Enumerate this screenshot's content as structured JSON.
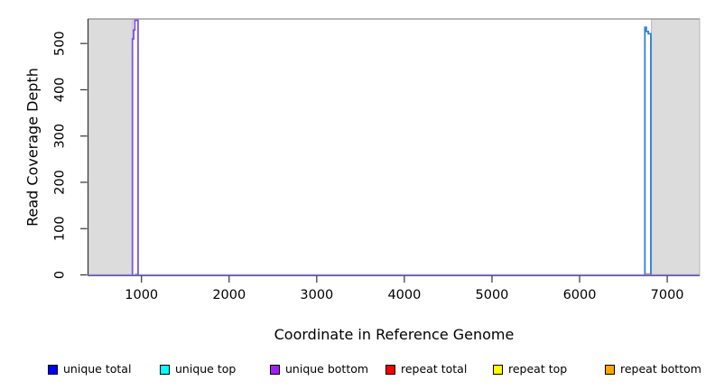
{
  "chart_data": {
    "type": "line",
    "title": "",
    "xlabel": "Coordinate in Reference Genome",
    "ylabel": "Read Coverage Depth",
    "xlim": [
      390,
      7370
    ],
    "ylim": [
      0,
      553
    ],
    "x_ticks": [
      1000,
      2000,
      3000,
      4000,
      5000,
      6000,
      7000
    ],
    "y_ticks": [
      0,
      100,
      200,
      300,
      400,
      500
    ],
    "grid": false,
    "legend_position": "bottom",
    "masked_regions": [
      {
        "start": 390,
        "end": 900
      },
      {
        "start": 6820,
        "end": 7370
      }
    ],
    "masked_region_fill": "#dcdcdc",
    "masked_region_border": "#b8b8b8",
    "plot_top_border_color": "#8c8c8c",
    "axis_color": "#303030",
    "peaks": [
      {
        "x_start": 897,
        "x_end": 961,
        "depth": 550,
        "which": "left spike near coordinate 900-960"
      },
      {
        "x_start": 6745,
        "x_end": 6813,
        "depth": 535,
        "which": "right spike near coordinate 6750-6810"
      }
    ],
    "series": [
      {
        "label": "unique total",
        "color": "#0000ff"
      },
      {
        "label": "unique top",
        "color": "#00ffff"
      },
      {
        "label": "unique bottom",
        "color": "#a020f0"
      },
      {
        "label": "repeat total",
        "color": "#ff0000"
      },
      {
        "label": "repeat top",
        "color": "#ffff00"
      },
      {
        "label": "repeat bottom",
        "color": "#ffa500"
      }
    ],
    "plotted_lines": [
      {
        "id": "baseline",
        "desc": "all series at zero depth across genome",
        "color": "#8f7bea",
        "width": 1.5,
        "points": [
          [
            390,
            0
          ],
          [
            7370,
            0
          ]
        ]
      },
      {
        "id": "repeat-total-bump",
        "desc": "tiny repeat coverage at right spike base",
        "color": "#ff6a5a",
        "width": 1.4,
        "points": [
          [
            6747,
            2
          ],
          [
            6812,
            2
          ]
        ]
      },
      {
        "id": "repeat-top-bump",
        "desc": "tiny repeat coverage at left spike base",
        "color": "#5dbd5d",
        "width": 1.4,
        "points": [
          [
            928,
            2
          ],
          [
            958,
            2
          ]
        ]
      },
      {
        "id": "left-spike",
        "desc": "unique total + unique bottom overlap, peak ~550",
        "color": "#7b52ee",
        "width": 1.8,
        "points": [
          [
            897,
            0
          ],
          [
            897,
            510
          ],
          [
            911,
            510
          ],
          [
            911,
            529
          ],
          [
            924,
            529
          ],
          [
            924,
            550
          ],
          [
            961,
            550
          ],
          [
            961,
            0
          ]
        ]
      },
      {
        "id": "right-spike",
        "desc": "unique total + unique top overlap, peak ~535",
        "color": "#2f7fe0",
        "width": 1.8,
        "points": [
          [
            6745,
            0
          ],
          [
            6745,
            535
          ],
          [
            6761,
            535
          ],
          [
            6761,
            526
          ],
          [
            6784,
            526
          ],
          [
            6784,
            521
          ],
          [
            6813,
            521
          ],
          [
            6813,
            0
          ]
        ]
      }
    ]
  }
}
